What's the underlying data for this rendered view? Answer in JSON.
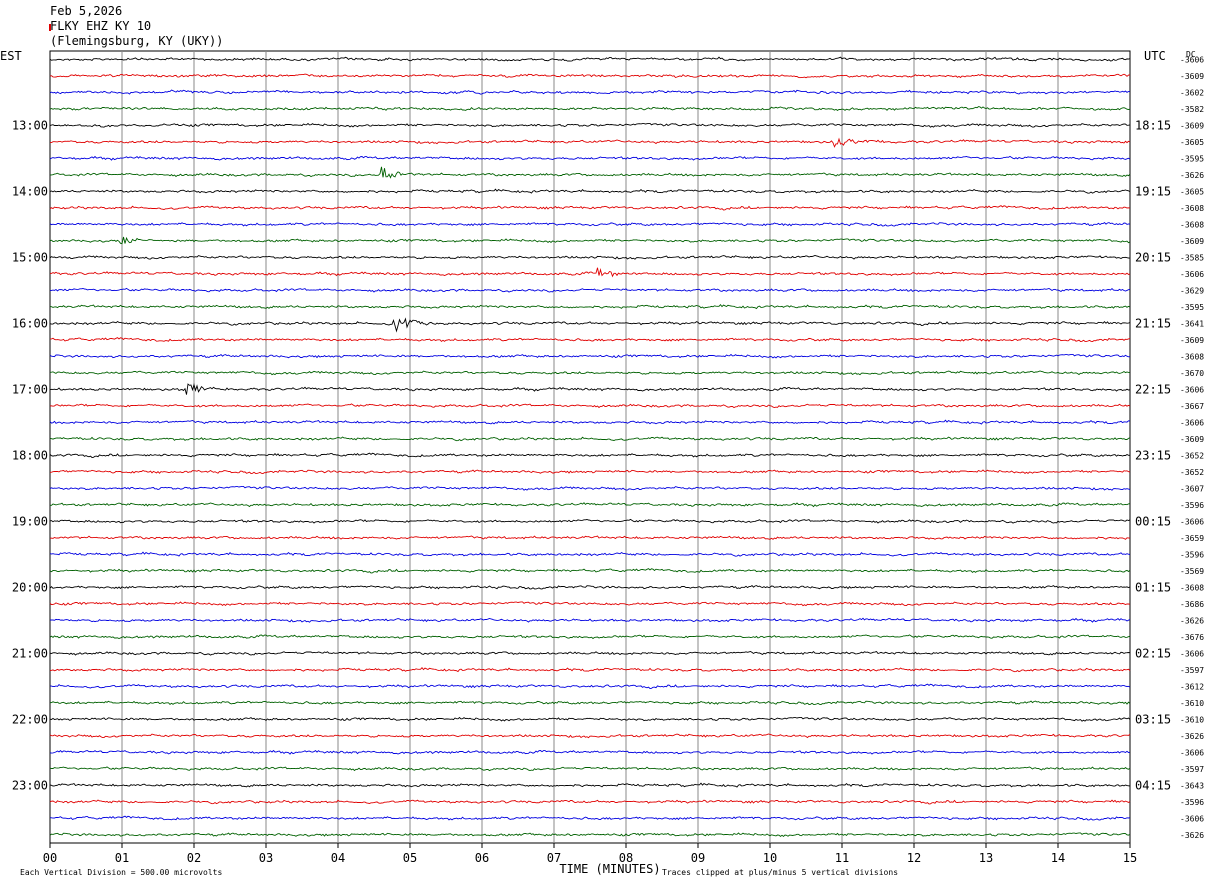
{
  "header": {
    "date": "Feb 5,2026",
    "station": "FLKY EHZ KY 10",
    "location": "(Flemingsburg, KY (UKY))"
  },
  "chart_data": {
    "type": "line",
    "title": "FLKY EHZ KY 10",
    "left_axis_label": "EST",
    "right_axis_label": "UTC",
    "dc_label": "DC",
    "xlabel": "TIME (MINUTES)",
    "x_ticks": [
      "00",
      "01",
      "02",
      "03",
      "04",
      "05",
      "06",
      "07",
      "08",
      "09",
      "10",
      "11",
      "12",
      "13",
      "14",
      "15"
    ],
    "xlim": [
      0,
      15
    ],
    "left_hour_labels": [
      "13:00",
      "14:00",
      "15:00",
      "16:00",
      "17:00",
      "18:00",
      "19:00",
      "20:00",
      "21:00",
      "22:00",
      "23:00"
    ],
    "right_hour_labels": [
      "18:15",
      "19:15",
      "20:15",
      "21:15",
      "22:15",
      "23:15",
      "00:15",
      "01:15",
      "02:15",
      "03:15",
      "04:15"
    ],
    "trace_colors": [
      "#000000",
      "#e00000",
      "#0000e0",
      "#006000"
    ],
    "dc_offsets": [
      "-3606",
      "-3609",
      "-3602",
      "-3582",
      "-3609",
      "-3605",
      "-3595",
      "-3626",
      "-3605",
      "-3608",
      "-3608",
      "-3609",
      "-3585",
      "-3606",
      "-3629",
      "-3595",
      "-3641",
      "-3609",
      "-3608",
      "-3670",
      "-3606",
      "-3667",
      "-3606",
      "-3609",
      "-3652",
      "-3652",
      "-3607",
      "-3596",
      "-3606",
      "-3659",
      "-3596",
      "-3569",
      "-3608",
      "-3686",
      "-3626",
      "-3676",
      "-3606",
      "-3597",
      "-3612",
      "-3610",
      "-3610",
      "-3626",
      "-3606",
      "-3597",
      "-3643",
      "-3596",
      "-3606",
      "-3626"
    ],
    "first_trace_hour_label_index": 4,
    "grid": true,
    "footer_left": "Each Vertical Division =  500.00 microvolts",
    "footer_right": "Traces clipped at plus/minus 5 vertical divisions",
    "events": [
      {
        "trace": 7,
        "minute": 4.6,
        "amplitude": 9
      },
      {
        "trace": 16,
        "minute": 4.8,
        "amplitude": 11
      },
      {
        "trace": 11,
        "minute": 1.0,
        "amplitude": 5
      },
      {
        "trace": 20,
        "minute": 1.9,
        "amplitude": 7
      },
      {
        "trace": 5,
        "minute": 10.9,
        "amplitude": 6
      },
      {
        "trace": 13,
        "minute": 7.6,
        "amplitude": 5
      }
    ]
  }
}
